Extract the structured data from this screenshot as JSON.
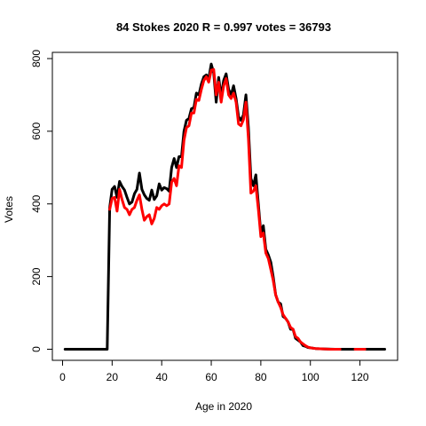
{
  "chart_data": {
    "type": "line",
    "title": "84 Stokes 2020 R = 0.997 votes = 36793",
    "xlabel": "Age in 2020",
    "ylabel": "Votes",
    "xlim": [
      0,
      130
    ],
    "ylim": [
      0,
      800
    ],
    "xticks": [
      0,
      20,
      40,
      60,
      80,
      100,
      120
    ],
    "yticks": [
      0,
      200,
      400,
      600,
      800
    ],
    "series": [
      {
        "color": "#000000",
        "points": [
          [
            1,
            0
          ],
          [
            5,
            0
          ],
          [
            10,
            0
          ],
          [
            15,
            0
          ],
          [
            18,
            0
          ],
          [
            19,
            390
          ],
          [
            20,
            440
          ],
          [
            21,
            448
          ],
          [
            22,
            418
          ],
          [
            23,
            462
          ],
          [
            24,
            448
          ],
          [
            25,
            438
          ],
          [
            26,
            418
          ],
          [
            27,
            400
          ],
          [
            28,
            405
          ],
          [
            29,
            428
          ],
          [
            30,
            440
          ],
          [
            31,
            485
          ],
          [
            32,
            440
          ],
          [
            33,
            425
          ],
          [
            34,
            415
          ],
          [
            35,
            410
          ],
          [
            36,
            438
          ],
          [
            37,
            412
          ],
          [
            38,
            422
          ],
          [
            39,
            455
          ],
          [
            40,
            438
          ],
          [
            41,
            445
          ],
          [
            42,
            442
          ],
          [
            43,
            435
          ],
          [
            44,
            500
          ],
          [
            45,
            525
          ],
          [
            46,
            500
          ],
          [
            47,
            530
          ],
          [
            48,
            530
          ],
          [
            49,
            600
          ],
          [
            50,
            630
          ],
          [
            51,
            635
          ],
          [
            52,
            662
          ],
          [
            53,
            665
          ],
          [
            54,
            705
          ],
          [
            55,
            700
          ],
          [
            56,
            730
          ],
          [
            57,
            750
          ],
          [
            58,
            755
          ],
          [
            59,
            745
          ],
          [
            60,
            785
          ],
          [
            61,
            760
          ],
          [
            62,
            680
          ],
          [
            63,
            748
          ],
          [
            64,
            695
          ],
          [
            65,
            740
          ],
          [
            66,
            758
          ],
          [
            67,
            715
          ],
          [
            68,
            700
          ],
          [
            69,
            725
          ],
          [
            70,
            690
          ],
          [
            71,
            640
          ],
          [
            72,
            630
          ],
          [
            73,
            645
          ],
          [
            74,
            700
          ],
          [
            75,
            610
          ],
          [
            76,
            470
          ],
          [
            77,
            450
          ],
          [
            78,
            480
          ],
          [
            79,
            400
          ],
          [
            80,
            320
          ],
          [
            81,
            340
          ],
          [
            82,
            275
          ],
          [
            83,
            260
          ],
          [
            84,
            240
          ],
          [
            85,
            200
          ],
          [
            86,
            150
          ],
          [
            87,
            130
          ],
          [
            88,
            125
          ],
          [
            89,
            90
          ],
          [
            90,
            85
          ],
          [
            91,
            75
          ],
          [
            92,
            55
          ],
          [
            93,
            55
          ],
          [
            94,
            30
          ],
          [
            95,
            25
          ],
          [
            96,
            20
          ],
          [
            97,
            10
          ],
          [
            98,
            8
          ],
          [
            99,
            5
          ],
          [
            100,
            4
          ],
          [
            102,
            2
          ],
          [
            105,
            1
          ],
          [
            110,
            0
          ],
          [
            115,
            0
          ],
          [
            120,
            0
          ],
          [
            125,
            0
          ],
          [
            130,
            0
          ]
        ]
      },
      {
        "color": "#ff0000",
        "points": [
          [
            19,
            385
          ],
          [
            20,
            415
          ],
          [
            21,
            418
          ],
          [
            22,
            380
          ],
          [
            23,
            440
          ],
          [
            24,
            412
          ],
          [
            25,
            390
          ],
          [
            26,
            385
          ],
          [
            27,
            370
          ],
          [
            28,
            385
          ],
          [
            29,
            390
          ],
          [
            30,
            410
          ],
          [
            31,
            425
          ],
          [
            32,
            385
          ],
          [
            33,
            355
          ],
          [
            34,
            365
          ],
          [
            35,
            370
          ],
          [
            36,
            345
          ],
          [
            37,
            360
          ],
          [
            38,
            390
          ],
          [
            39,
            385
          ],
          [
            40,
            395
          ],
          [
            41,
            400
          ],
          [
            42,
            395
          ],
          [
            43,
            400
          ],
          [
            44,
            460
          ],
          [
            45,
            470
          ],
          [
            46,
            450
          ],
          [
            47,
            505
          ],
          [
            48,
            500
          ],
          [
            49,
            575
          ],
          [
            50,
            610
          ],
          [
            51,
            615
          ],
          [
            52,
            650
          ],
          [
            53,
            650
          ],
          [
            54,
            688
          ],
          [
            55,
            685
          ],
          [
            56,
            715
          ],
          [
            57,
            740
          ],
          [
            58,
            750
          ],
          [
            59,
            735
          ],
          [
            60,
            768
          ],
          [
            61,
            770
          ],
          [
            62,
            700
          ],
          [
            63,
            735
          ],
          [
            64,
            680
          ],
          [
            65,
            725
          ],
          [
            66,
            745
          ],
          [
            67,
            700
          ],
          [
            68,
            690
          ],
          [
            69,
            705
          ],
          [
            70,
            680
          ],
          [
            71,
            620
          ],
          [
            72,
            615
          ],
          [
            73,
            632
          ],
          [
            74,
            680
          ],
          [
            75,
            580
          ],
          [
            76,
            430
          ],
          [
            77,
            435
          ],
          [
            78,
            450
          ],
          [
            79,
            385
          ],
          [
            80,
            310
          ],
          [
            81,
            320
          ],
          [
            82,
            265
          ],
          [
            83,
            250
          ],
          [
            84,
            220
          ],
          [
            85,
            190
          ],
          [
            86,
            150
          ],
          [
            87,
            130
          ],
          [
            88,
            115
          ],
          [
            89,
            95
          ],
          [
            90,
            85
          ],
          [
            91,
            75
          ],
          [
            92,
            60
          ],
          [
            93,
            55
          ],
          [
            94,
            35
          ],
          [
            95,
            30
          ],
          [
            96,
            20
          ],
          [
            97,
            15
          ],
          [
            98,
            10
          ],
          [
            99,
            6
          ],
          [
            100,
            4
          ],
          [
            102,
            2
          ],
          [
            105,
            1
          ],
          [
            108,
            0
          ],
          [
            112,
            0
          ]
        ]
      },
      {
        "color": "#ff0000",
        "points": [
          [
            118,
            0
          ],
          [
            122,
            0
          ]
        ]
      }
    ]
  }
}
